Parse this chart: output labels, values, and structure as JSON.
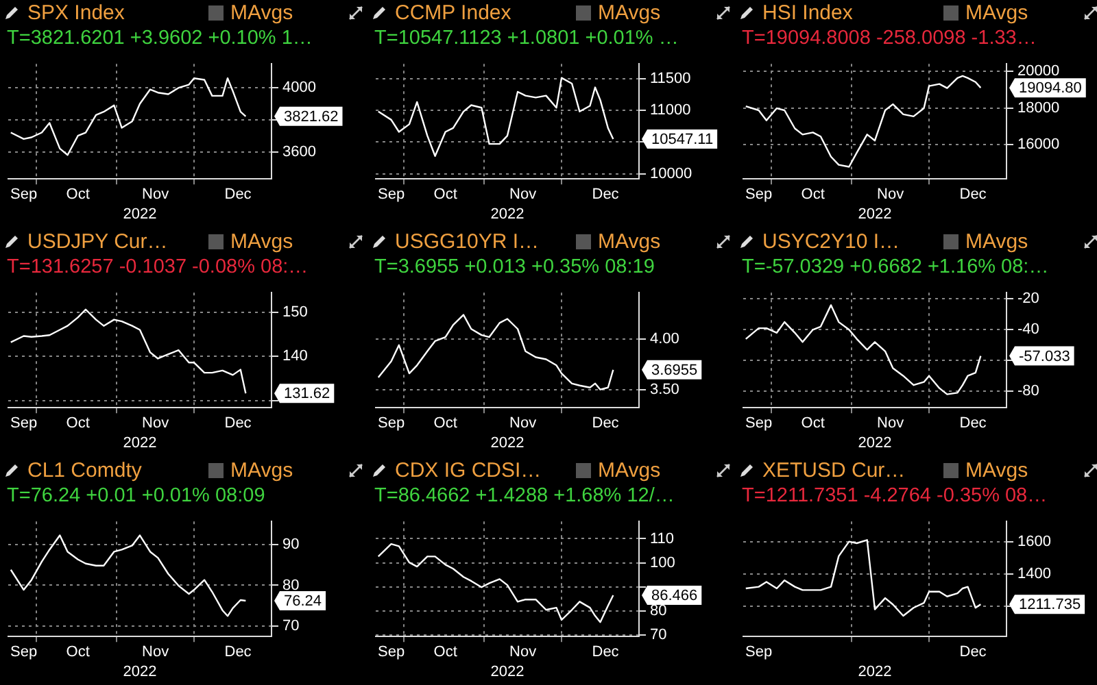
{
  "chart_data": [
    {
      "type": "line",
      "title": "SPX Index",
      "subtitle": "T=3821.6201 +3.9602 +0.10% 1…",
      "xlabel": "2022",
      "annotations": [
        "MAvgs",
        "3821.62"
      ],
      "grid": true,
      "color": "#ffffff",
      "x": [
        "2022-09-21",
        "2022-09-26",
        "2022-09-29",
        "2022-10-03",
        "2022-10-06",
        "2022-10-10",
        "2022-10-13",
        "2022-10-17",
        "2022-10-20",
        "2022-10-24",
        "2022-10-27",
        "2022-10-31",
        "2022-11-03",
        "2022-11-07",
        "2022-11-10",
        "2022-11-14",
        "2022-11-17",
        "2022-11-21",
        "2022-11-25",
        "2022-11-29",
        "2022-12-01",
        "2022-12-05",
        "2022-12-08",
        "2022-12-12",
        "2022-12-14",
        "2022-12-16",
        "2022-12-19",
        "2022-12-21"
      ],
      "values": [
        3720,
        3680,
        3690,
        3720,
        3780,
        3620,
        3580,
        3700,
        3720,
        3830,
        3850,
        3890,
        3750,
        3790,
        3900,
        3990,
        3970,
        3960,
        4000,
        4020,
        4060,
        4050,
        3950,
        3950,
        4060,
        3980,
        3850,
        3821.62
      ],
      "xlim": [
        "2022-09-20",
        "2022-12-31"
      ],
      "xticks": [
        {
          "value": "2022-09-26",
          "label": "Sep"
        },
        {
          "value": "2022-10-01",
          "label": null
        },
        {
          "value": "2022-10-17",
          "label": "Oct"
        },
        {
          "value": "2022-11-01",
          "label": null
        },
        {
          "value": "2022-11-16",
          "label": "Nov"
        },
        {
          "value": "2022-12-01",
          "label": null
        },
        {
          "value": "2022-12-18",
          "label": "Dec"
        }
      ],
      "ylim": [
        3430,
        4150
      ],
      "yticks": [
        3600,
        {
          "value": 3800,
          "label": null
        },
        4000
      ]
    },
    {
      "type": "line",
      "title": "CCMP Index",
      "subtitle": "T=10547.1123 +1.0801 +0.01% …",
      "xlabel": "2022",
      "annotations": [
        "MAvgs",
        "10547.11"
      ],
      "grid": true,
      "color": "#ffffff",
      "x": [
        "2022-09-21",
        "2022-09-26",
        "2022-09-29",
        "2022-10-03",
        "2022-10-06",
        "2022-10-10",
        "2022-10-13",
        "2022-10-17",
        "2022-10-20",
        "2022-10-24",
        "2022-10-27",
        "2022-10-31",
        "2022-11-03",
        "2022-11-07",
        "2022-11-10",
        "2022-11-14",
        "2022-11-17",
        "2022-11-21",
        "2022-11-25",
        "2022-11-29",
        "2022-12-01",
        "2022-12-05",
        "2022-12-08",
        "2022-12-12",
        "2022-12-14",
        "2022-12-16",
        "2022-12-19",
        "2022-12-21"
      ],
      "values": [
        10980,
        10850,
        10660,
        10780,
        11130,
        10600,
        10280,
        10660,
        10720,
        10980,
        11080,
        11040,
        10470,
        10470,
        10600,
        11290,
        11230,
        11200,
        11230,
        11040,
        11510,
        11420,
        10980,
        11070,
        11360,
        11160,
        10720,
        10547.11
      ],
      "xlim": [
        "2022-09-20",
        "2022-12-31"
      ],
      "xticks": [
        {
          "value": "2022-09-26",
          "label": "Sep"
        },
        {
          "value": "2022-10-01",
          "label": null
        },
        {
          "value": "2022-10-17",
          "label": "Oct"
        },
        {
          "value": "2022-11-01",
          "label": null
        },
        {
          "value": "2022-11-16",
          "label": "Nov"
        },
        {
          "value": "2022-12-01",
          "label": null
        },
        {
          "value": "2022-12-18",
          "label": "Dec"
        }
      ],
      "ylim": [
        9920,
        11730
      ],
      "yticks": [
        10000,
        {
          "value": 10500,
          "label": null
        },
        11000,
        11500
      ]
    },
    {
      "type": "line",
      "title": "HSI Index",
      "subtitle": "T=19094.8008 -258.0098 -1.33…",
      "xlabel": "2022",
      "annotations": [
        "MAvgs",
        "19094.80"
      ],
      "grid": true,
      "color": "#ffffff",
      "x": [
        "2022-09-21",
        "2022-09-26",
        "2022-09-29",
        "2022-10-03",
        "2022-10-06",
        "2022-10-10",
        "2022-10-13",
        "2022-10-17",
        "2022-10-20",
        "2022-10-24",
        "2022-10-27",
        "2022-10-31",
        "2022-11-03",
        "2022-11-07",
        "2022-11-10",
        "2022-11-14",
        "2022-11-17",
        "2022-11-21",
        "2022-11-25",
        "2022-11-29",
        "2022-12-01",
        "2022-12-05",
        "2022-12-08",
        "2022-12-12",
        "2022-12-14",
        "2022-12-16",
        "2022-12-19",
        "2022-12-21"
      ],
      "values": [
        18090,
        17870,
        17320,
        17980,
        17870,
        16880,
        16550,
        16660,
        16440,
        15340,
        14900,
        14790,
        15560,
        16550,
        16220,
        17870,
        18200,
        17650,
        17540,
        17980,
        19190,
        19300,
        19080,
        19630,
        19740,
        19630,
        19410,
        19094.8
      ],
      "xlim": [
        "2022-09-20",
        "2022-12-31"
      ],
      "xticks": [
        {
          "value": "2022-09-26",
          "label": "Sep"
        },
        {
          "value": "2022-10-01",
          "label": null
        },
        {
          "value": "2022-10-17",
          "label": "Oct"
        },
        {
          "value": "2022-11-01",
          "label": null
        },
        {
          "value": "2022-11-16",
          "label": "Nov"
        },
        {
          "value": "2022-12-01",
          "label": null
        },
        {
          "value": "2022-12-18",
          "label": "Dec"
        }
      ],
      "ylim": [
        14130,
        20400
      ],
      "yticks": [
        16000,
        18000,
        20000
      ]
    },
    {
      "type": "line",
      "title": "USDJPY Cur…",
      "subtitle": "T=131.6257 -0.1037 -0.08% 08:…",
      "xlabel": "2022",
      "annotations": [
        "MAvgs",
        "131.62"
      ],
      "grid": true,
      "color": "#ffffff",
      "x": [
        "2022-09-21",
        "2022-09-26",
        "2022-09-29",
        "2022-10-03",
        "2022-10-06",
        "2022-10-10",
        "2022-10-13",
        "2022-10-17",
        "2022-10-20",
        "2022-10-24",
        "2022-10-27",
        "2022-10-31",
        "2022-11-03",
        "2022-11-07",
        "2022-11-10",
        "2022-11-14",
        "2022-11-17",
        "2022-11-21",
        "2022-11-25",
        "2022-11-29",
        "2022-12-01",
        "2022-12-05",
        "2022-12-08",
        "2022-12-12",
        "2022-12-14",
        "2022-12-16",
        "2022-12-19",
        "2022-12-21"
      ],
      "values": [
        143.2,
        144.6,
        144.4,
        144.6,
        144.8,
        146.0,
        146.9,
        148.8,
        150.6,
        148.3,
        146.9,
        148.3,
        147.9,
        146.9,
        146.0,
        140.9,
        139.5,
        140.5,
        141.4,
        138.6,
        138.6,
        136.3,
        136.3,
        136.8,
        136.3,
        135.8,
        137.0,
        131.6257
      ],
      "xlim": [
        "2022-09-20",
        "2022-12-31"
      ],
      "xticks": [
        {
          "value": "2022-09-26",
          "label": "Sep"
        },
        {
          "value": "2022-10-01",
          "label": null
        },
        {
          "value": "2022-10-17",
          "label": "Oct"
        },
        {
          "value": "2022-11-01",
          "label": null
        },
        {
          "value": "2022-11-16",
          "label": "Nov"
        },
        {
          "value": "2022-12-01",
          "label": null
        },
        {
          "value": "2022-12-18",
          "label": "Dec"
        }
      ],
      "ylim": [
        128.4,
        154.4
      ],
      "yticks": [
        {
          "value": 130,
          "label": null
        },
        140,
        150
      ]
    },
    {
      "type": "line",
      "title": "USGG10YR I…",
      "subtitle": "T=3.6955 +0.013 +0.35% 08:19",
      "xlabel": "2022",
      "annotations": [
        "MAvgs",
        "3.6955"
      ],
      "grid": true,
      "color": "#ffffff",
      "x": [
        "2022-09-21",
        "2022-09-26",
        "2022-09-29",
        "2022-10-03",
        "2022-10-06",
        "2022-10-10",
        "2022-10-13",
        "2022-10-17",
        "2022-10-20",
        "2022-10-24",
        "2022-10-27",
        "2022-10-31",
        "2022-11-03",
        "2022-11-07",
        "2022-11-10",
        "2022-11-14",
        "2022-11-17",
        "2022-11-21",
        "2022-11-25",
        "2022-11-29",
        "2022-12-01",
        "2022-12-05",
        "2022-12-08",
        "2022-12-12",
        "2022-12-14",
        "2022-12-16",
        "2022-12-19",
        "2022-12-21"
      ],
      "values": [
        3.62,
        3.78,
        3.94,
        3.66,
        3.74,
        3.88,
        3.98,
        4.02,
        4.14,
        4.24,
        4.1,
        4.04,
        4.02,
        4.16,
        4.2,
        4.1,
        3.88,
        3.82,
        3.8,
        3.74,
        3.66,
        3.56,
        3.54,
        3.52,
        3.56,
        3.5,
        3.52,
        3.6955
      ],
      "xlim": [
        "2022-09-20",
        "2022-12-31"
      ],
      "xticks": [
        {
          "value": "2022-09-26",
          "label": "Sep"
        },
        {
          "value": "2022-10-01",
          "label": null
        },
        {
          "value": "2022-10-17",
          "label": "Oct"
        },
        {
          "value": "2022-11-01",
          "label": null
        },
        {
          "value": "2022-11-16",
          "label": "Nov"
        },
        {
          "value": "2022-12-01",
          "label": null
        },
        {
          "value": "2022-12-18",
          "label": "Dec"
        }
      ],
      "ylim": [
        3.32,
        4.46
      ],
      "yticks": [
        {
          "value": 3.5,
          "label": "3.50"
        },
        {
          "value": 4,
          "label": "4.00"
        }
      ]
    },
    {
      "type": "line",
      "title": "USYC2Y10 I…",
      "subtitle": "T=-57.0329 +0.6682 +1.16% 08:…",
      "xlabel": "2022",
      "annotations": [
        "MAvgs",
        "-57.033"
      ],
      "grid": true,
      "color": "#ffffff",
      "x": [
        "2022-09-21",
        "2022-09-26",
        "2022-09-29",
        "2022-10-03",
        "2022-10-06",
        "2022-10-10",
        "2022-10-13",
        "2022-10-17",
        "2022-10-20",
        "2022-10-24",
        "2022-10-27",
        "2022-10-31",
        "2022-11-03",
        "2022-11-07",
        "2022-11-10",
        "2022-11-14",
        "2022-11-17",
        "2022-11-21",
        "2022-11-25",
        "2022-11-29",
        "2022-12-01",
        "2022-12-05",
        "2022-12-08",
        "2022-12-12",
        "2022-12-14",
        "2022-12-16",
        "2022-12-19",
        "2022-12-21"
      ],
      "values": [
        -46,
        -39,
        -39,
        -42,
        -35,
        -42,
        -48,
        -40,
        -38,
        -24,
        -35,
        -40,
        -46,
        -53,
        -48,
        -54,
        -65,
        -70,
        -76,
        -74,
        -70,
        -78,
        -82,
        -81,
        -76,
        -70,
        -68,
        -57.0329
      ],
      "xlim": [
        "2022-09-20",
        "2022-12-31"
      ],
      "xticks": [
        {
          "value": "2022-09-26",
          "label": "Sep"
        },
        {
          "value": "2022-10-01",
          "label": null
        },
        {
          "value": "2022-10-17",
          "label": "Oct"
        },
        {
          "value": "2022-11-01",
          "label": null
        },
        {
          "value": "2022-11-16",
          "label": "Nov"
        },
        {
          "value": "2022-12-01",
          "label": null
        },
        {
          "value": "2022-12-18",
          "label": "Dec"
        }
      ],
      "ylim": [
        -90.7,
        -15.9
      ],
      "yticks": [
        -80,
        {
          "value": -60,
          "label": null
        },
        -40,
        -20
      ]
    },
    {
      "type": "line",
      "title": "CL1 Comdty",
      "subtitle": "T=76.24 +0.01 +0.01% 08:09",
      "xlabel": "2022",
      "annotations": [
        "MAvgs",
        "76.24"
      ],
      "grid": true,
      "color": "#ffffff",
      "x": [
        "2022-09-21",
        "2022-09-26",
        "2022-09-29",
        "2022-10-03",
        "2022-10-06",
        "2022-10-10",
        "2022-10-13",
        "2022-10-17",
        "2022-10-20",
        "2022-10-24",
        "2022-10-27",
        "2022-10-31",
        "2022-11-03",
        "2022-11-07",
        "2022-11-10",
        "2022-11-14",
        "2022-11-17",
        "2022-11-21",
        "2022-11-25",
        "2022-11-29",
        "2022-12-01",
        "2022-12-05",
        "2022-12-08",
        "2022-12-12",
        "2022-12-14",
        "2022-12-16",
        "2022-12-19",
        "2022-12-21"
      ],
      "values": [
        83.8,
        78.9,
        81.3,
        85.8,
        88.7,
        92.2,
        88.2,
        86.3,
        85.3,
        84.8,
        84.8,
        88.2,
        88.7,
        89.7,
        92.2,
        88.2,
        86.7,
        82.8,
        79.9,
        77.9,
        78.9,
        81.3,
        78.4,
        73.9,
        72.5,
        74.4,
        76.4,
        76.24
      ],
      "xlim": [
        "2022-09-20",
        "2022-12-31"
      ],
      "xticks": [
        {
          "value": "2022-09-26",
          "label": "Sep"
        },
        {
          "value": "2022-10-01",
          "label": null
        },
        {
          "value": "2022-10-17",
          "label": "Oct"
        },
        {
          "value": "2022-11-01",
          "label": null
        },
        {
          "value": "2022-11-16",
          "label": "Nov"
        },
        {
          "value": "2022-12-01",
          "label": null
        },
        {
          "value": "2022-12-18",
          "label": "Dec"
        }
      ],
      "ylim": [
        67.5,
        95.6
      ],
      "yticks": [
        70,
        80,
        90
      ]
    },
    {
      "type": "line",
      "title": "CDX IG CDSI…",
      "subtitle": "T=86.4662 +1.4288 +1.68% 12/…",
      "xlabel": "2022",
      "annotations": [
        "MAvgs",
        "86.466"
      ],
      "grid": true,
      "color": "#ffffff",
      "x": [
        "2022-09-21",
        "2022-09-26",
        "2022-09-29",
        "2022-10-03",
        "2022-10-06",
        "2022-10-10",
        "2022-10-13",
        "2022-10-17",
        "2022-10-20",
        "2022-10-24",
        "2022-10-27",
        "2022-10-31",
        "2022-11-03",
        "2022-11-07",
        "2022-11-10",
        "2022-11-14",
        "2022-11-17",
        "2022-11-21",
        "2022-11-25",
        "2022-11-29",
        "2022-12-01",
        "2022-12-05",
        "2022-12-08",
        "2022-12-12",
        "2022-12-14",
        "2022-12-16",
        "2022-12-19",
        "2022-12-21"
      ],
      "values": [
        102.6,
        107.8,
        106.9,
        100.1,
        98.4,
        102.6,
        102.6,
        99.2,
        97.5,
        94.1,
        92.4,
        89.8,
        91.5,
        93.2,
        90.7,
        83.8,
        84.7,
        84.7,
        80.4,
        81.3,
        76.2,
        80.4,
        83.8,
        81.3,
        77.9,
        75.3,
        82.1,
        86.4662
      ],
      "xlim": [
        "2022-09-20",
        "2022-12-31"
      ],
      "xticks": [
        {
          "value": "2022-09-26",
          "label": "Sep"
        },
        {
          "value": "2022-10-01",
          "label": null
        },
        {
          "value": "2022-10-17",
          "label": "Oct"
        },
        {
          "value": "2022-11-01",
          "label": null
        },
        {
          "value": "2022-11-16",
          "label": "Nov"
        },
        {
          "value": "2022-12-01",
          "label": null
        },
        {
          "value": "2022-12-18",
          "label": "Dec"
        }
      ],
      "ylim": [
        69.3,
        117.2
      ],
      "yticks": [
        70,
        80,
        {
          "value": 90,
          "label": null
        },
        100,
        110
      ]
    },
    {
      "type": "line",
      "title": "XETUSD Cur…",
      "subtitle": "T=1211.7351 -4.2764 -0.35% 08…",
      "xlabel": "2022",
      "annotations": [
        "MAvgs",
        "1211.735"
      ],
      "grid": true,
      "color": "#ffffff",
      "x": [
        "2022-09-21",
        "2022-09-26",
        "2022-09-29",
        "2022-10-03",
        "2022-10-06",
        "2022-10-10",
        "2022-10-13",
        "2022-10-17",
        "2022-10-20",
        "2022-10-24",
        "2022-10-27",
        "2022-10-31",
        "2022-11-03",
        "2022-11-07",
        "2022-11-10",
        "2022-11-14",
        "2022-11-17",
        "2022-11-21",
        "2022-11-25",
        "2022-11-29",
        "2022-12-01",
        "2022-12-05",
        "2022-12-08",
        "2022-12-12",
        "2022-12-14",
        "2022-12-16",
        "2022-12-19",
        "2022-12-21"
      ],
      "values": [
        1310,
        1320,
        1350,
        1310,
        1360,
        1320,
        1300,
        1300,
        1300,
        1320,
        1510,
        1600,
        1590,
        1610,
        1180,
        1250,
        1210,
        1140,
        1190,
        1220,
        1290,
        1290,
        1260,
        1280,
        1310,
        1320,
        1190,
        1211.7351
      ],
      "xlim": [
        "2022-09-20",
        "2022-12-31"
      ],
      "xticks": [
        {
          "value": "2022-09-26",
          "label": "Sep"
        },
        {
          "value": "2022-11-01",
          "label": null
        },
        {
          "value": "2022-12-01",
          "label": null
        },
        {
          "value": "2022-12-18",
          "label": "Dec"
        }
      ],
      "ylim": [
        1012,
        1725
      ],
      "yticks": [
        {
          "value": 1200,
          "label": null
        },
        1400,
        1600
      ]
    }
  ]
}
